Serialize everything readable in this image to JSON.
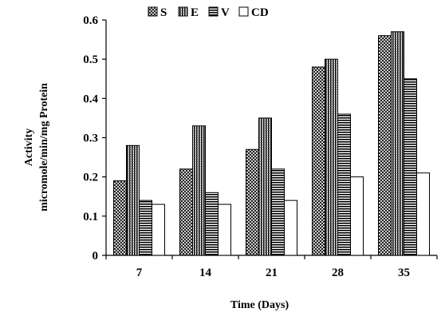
{
  "chart_data": {
    "type": "bar",
    "title": "",
    "xlabel": "Time (Days)",
    "ylabel_lines": [
      "Activity",
      "micromole/min/mg Protein"
    ],
    "categories": [
      "7",
      "14",
      "21",
      "28",
      "35"
    ],
    "ylim": [
      0,
      0.6
    ],
    "yticks": [
      "0",
      "0.1",
      "0.2",
      "0.3",
      "0.4",
      "0.5",
      "0.6"
    ],
    "grid": false,
    "legend_position": "top",
    "series": [
      {
        "name": "S",
        "pattern": "crosshatch",
        "values": [
          0.19,
          0.22,
          0.27,
          0.48,
          0.56
        ]
      },
      {
        "name": "E",
        "pattern": "vertical-stripes",
        "values": [
          0.28,
          0.33,
          0.35,
          0.5,
          0.57
        ]
      },
      {
        "name": "V",
        "pattern": "horizontal-stripes",
        "values": [
          0.14,
          0.16,
          0.22,
          0.36,
          0.45
        ]
      },
      {
        "name": "CD",
        "pattern": "white",
        "values": [
          0.13,
          0.13,
          0.14,
          0.2,
          0.21
        ]
      }
    ]
  }
}
